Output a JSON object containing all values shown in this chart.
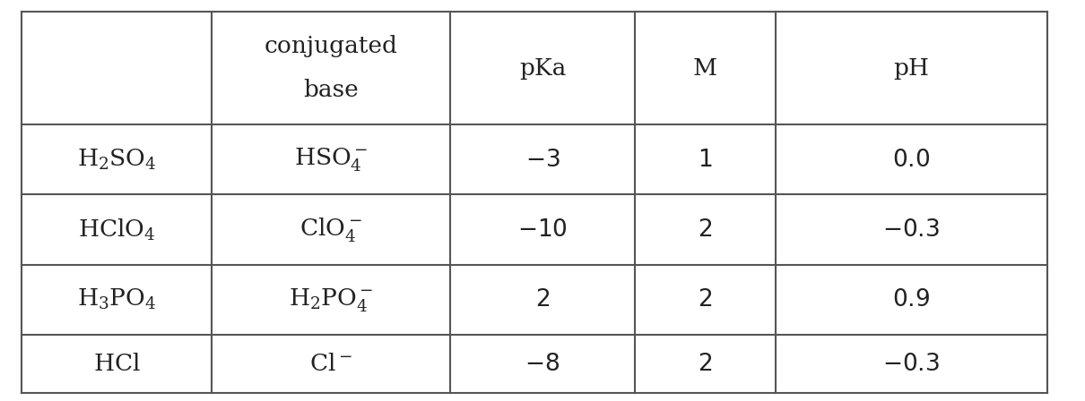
{
  "figsize": [
    12.1,
    4.48
  ],
  "dpi": 100,
  "bg_color": "#ffffff",
  "line_color": "#555555",
  "text_color": "#222222",
  "font_size": 19,
  "col_bounds": [
    0.02,
    0.195,
    0.415,
    0.585,
    0.715,
    0.965
  ],
  "row_tops": [
    0.97,
    0.69,
    0.515,
    0.34,
    0.165,
    0.02
  ],
  "header_cols": [
    {
      "line1": "",
      "line2": ""
    },
    {
      "line1": "conjugated",
      "line2": "base"
    },
    {
      "line1": "pKa",
      "line2": ""
    },
    {
      "line1": "M",
      "line2": ""
    },
    {
      "line1": "pH",
      "line2": ""
    }
  ],
  "rows": [
    [
      "$\\mathregular{H_2SO_4}$",
      "$\\mathregular{HSO_4^-}$",
      "$-3$",
      "$1$",
      "$0.0$"
    ],
    [
      "$\\mathregular{HClO_4}$",
      "$\\mathregular{ClO_4^-}$",
      "$-10$",
      "$2$",
      "$-0.3$"
    ],
    [
      "$\\mathregular{H_3PO_4}$",
      "$\\mathregular{H_2PO_4^-}$",
      "$2$",
      "$2$",
      "$0.9$"
    ],
    [
      "$\\mathregular{HCl}$",
      "$\\mathregular{Cl^-}$",
      "$-8$",
      "$2$",
      "$-0.3$"
    ]
  ]
}
